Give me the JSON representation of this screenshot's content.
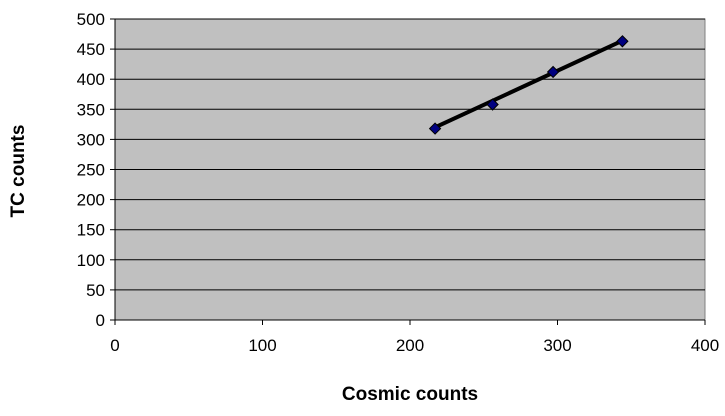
{
  "chart_data": {
    "type": "scatter",
    "title": "",
    "xlabel": "Cosmic counts",
    "ylabel": "TC counts",
    "xlim": [
      0,
      400
    ],
    "ylim": [
      0,
      500
    ],
    "x_ticks": [
      0,
      100,
      200,
      300,
      400
    ],
    "y_ticks": [
      0,
      50,
      100,
      150,
      200,
      250,
      300,
      350,
      400,
      450,
      500
    ],
    "x_tick_labels": [
      "0",
      "100",
      "200",
      "300",
      "400"
    ],
    "y_tick_labels": [
      "0",
      "50",
      "100",
      "150",
      "200",
      "250",
      "300",
      "350",
      "400",
      "450",
      "500"
    ],
    "grid": "horizontal",
    "legend": "none",
    "series": [
      {
        "points": [
          {
            "x": 217,
            "y": 318
          },
          {
            "x": 256,
            "y": 358
          },
          {
            "x": 297,
            "y": 412
          },
          {
            "x": 344,
            "y": 463
          }
        ]
      }
    ],
    "trendline": {
      "type": "linear",
      "x": [
        217,
        344
      ],
      "y": [
        320,
        464
      ]
    },
    "colors": {
      "plot_background": "#c0c0c0",
      "grid": "#000000",
      "marker": "#000080",
      "trendline": "#000000"
    }
  }
}
